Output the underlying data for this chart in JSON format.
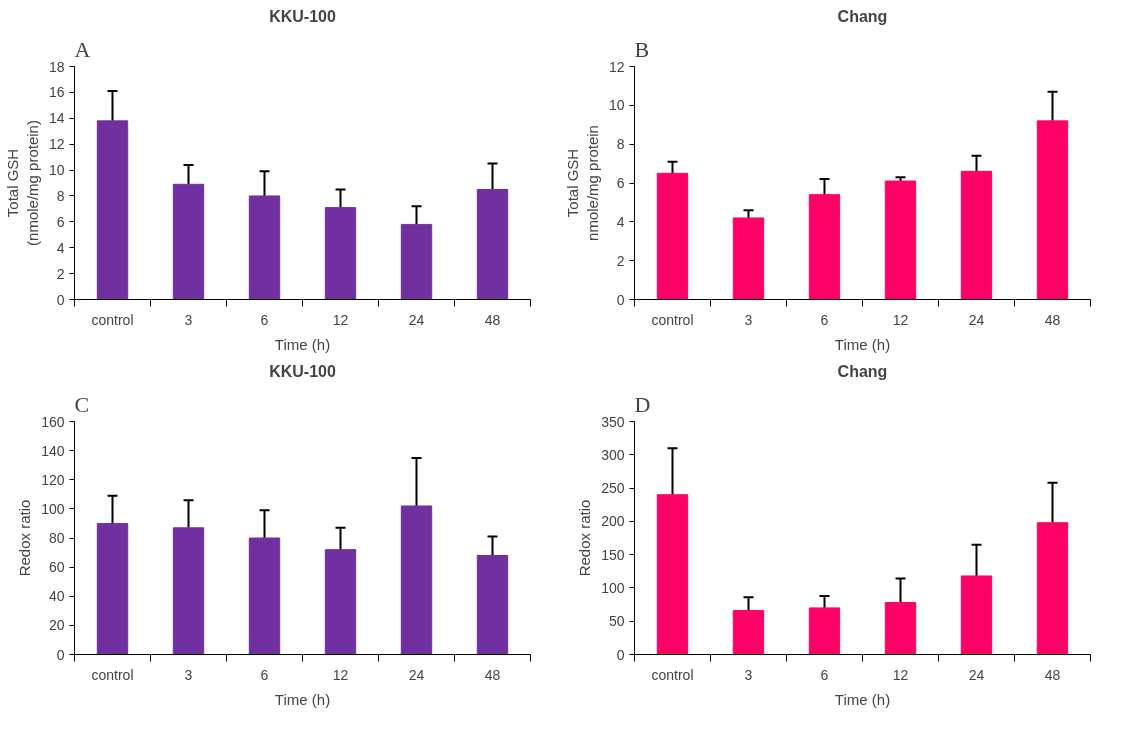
{
  "chart_data": [
    {
      "type": "bar",
      "title": "KKU-100",
      "annotations": [
        "A"
      ],
      "xlabel": "Time (h)",
      "ylabel": "Total GSH\n(nmole/mg protein)",
      "categories": [
        "control",
        "3",
        "6",
        "12",
        "24",
        "48"
      ],
      "values": [
        13.8,
        8.9,
        8.0,
        7.1,
        5.8,
        8.5
      ],
      "errors": [
        [
          13.8,
          16.1
        ],
        [
          8.9,
          10.4
        ],
        [
          8.0,
          9.9
        ],
        [
          7.1,
          8.5
        ],
        [
          5.8,
          7.2
        ],
        [
          8.5,
          10.5
        ]
      ],
      "color": "#7030a0",
      "ylim": [
        0,
        18
      ],
      "yticks": [
        0,
        2,
        4,
        6,
        8,
        10,
        12,
        14,
        16,
        18
      ],
      "grid": false
    },
    {
      "type": "bar",
      "title": "Chang",
      "annotations": [
        "B"
      ],
      "xlabel": "Time (h)",
      "ylabel": "Total GSH\nnmole/mg protein",
      "categories": [
        "control",
        "3",
        "6",
        "12",
        "24",
        "48"
      ],
      "values": [
        6.5,
        4.2,
        5.4,
        6.1,
        6.6,
        9.2
      ],
      "errors": [
        [
          6.5,
          7.1
        ],
        [
          4.2,
          4.6
        ],
        [
          5.4,
          6.2
        ],
        [
          6.1,
          6.3
        ],
        [
          6.6,
          7.4
        ],
        [
          9.2,
          10.7
        ]
      ],
      "color": "#ff0066",
      "ylim": [
        0,
        12
      ],
      "yticks": [
        0,
        2,
        4,
        6,
        8,
        10,
        12
      ],
      "grid": false
    },
    {
      "type": "bar",
      "title": "KKU-100",
      "annotations": [
        "C"
      ],
      "xlabel": "Time (h)",
      "ylabel": "Redox ratio",
      "categories": [
        "control",
        "3",
        "6",
        "12",
        "24",
        "48"
      ],
      "values": [
        90,
        87,
        80,
        72,
        102,
        68
      ],
      "errors": [
        [
          90,
          109
        ],
        [
          87,
          106
        ],
        [
          80,
          99
        ],
        [
          72,
          87
        ],
        [
          102,
          135
        ],
        [
          68,
          81
        ]
      ],
      "color": "#7030a0",
      "ylim": [
        0,
        160
      ],
      "yticks": [
        0,
        20,
        40,
        60,
        80,
        100,
        120,
        140,
        160
      ],
      "grid": false
    },
    {
      "type": "bar",
      "title": "Chang",
      "annotations": [
        "D"
      ],
      "xlabel": "Time (h)",
      "ylabel": "Redox ratio",
      "categories": [
        "control",
        "3",
        "6",
        "12",
        "24",
        "48"
      ],
      "values": [
        240,
        66,
        70,
        78,
        118,
        198
      ],
      "errors": [
        [
          240,
          310
        ],
        [
          66,
          86
        ],
        [
          70,
          88
        ],
        [
          78,
          114
        ],
        [
          118,
          165
        ],
        [
          198,
          258
        ]
      ],
      "color": "#ff0066",
      "ylim": [
        0,
        350
      ],
      "yticks": [
        0,
        50,
        100,
        150,
        200,
        250,
        300,
        350
      ],
      "grid": false
    }
  ]
}
